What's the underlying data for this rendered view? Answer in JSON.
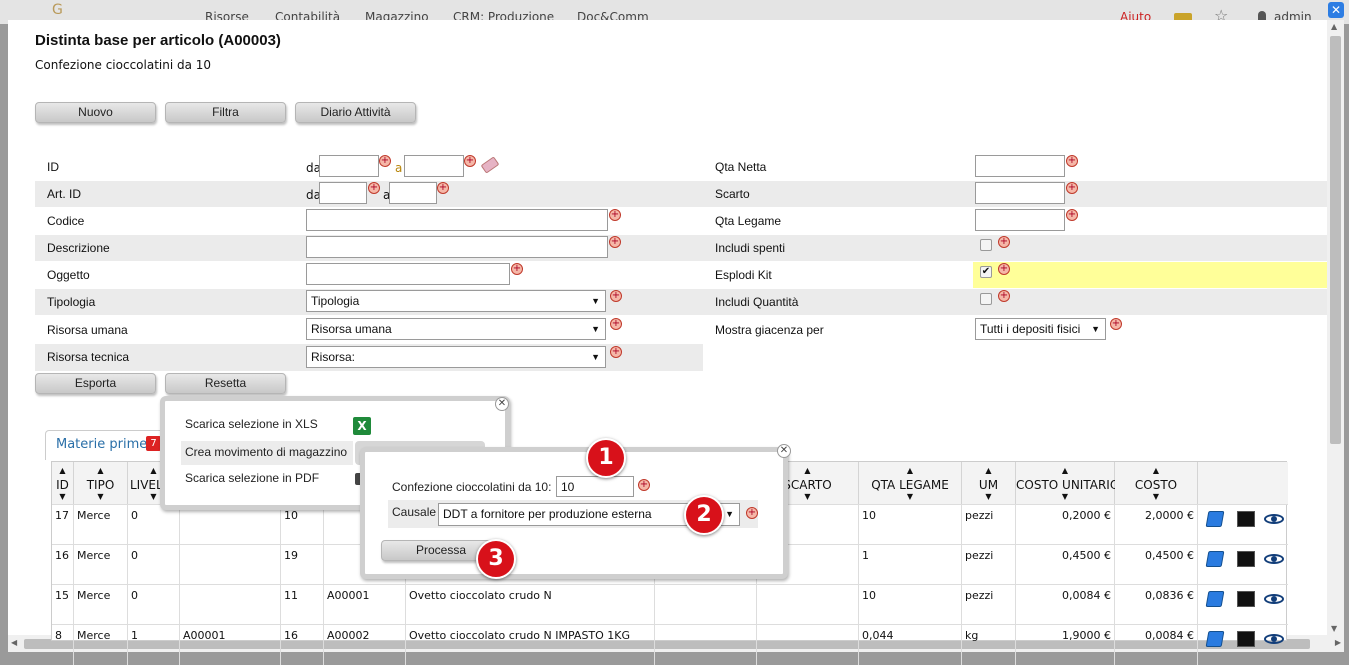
{
  "topbar": {
    "logo": "G",
    "nav": [
      "Risorse",
      "Contabilità",
      "Magazzino",
      "CRM: Produzione",
      "Doc&Comm"
    ],
    "help": "Aiuto",
    "user": "admin"
  },
  "page": {
    "title": "Distinta base per articolo (A00003)",
    "subtitle": "Confezione cioccolatini da 10"
  },
  "toolbar": {
    "new": "Nuovo",
    "filter": "Filtra",
    "activity_log": "Diario Attività",
    "export": "Esporta",
    "reset": "Resetta"
  },
  "filters": {
    "id": {
      "label": "ID",
      "from": "da",
      "to": "a"
    },
    "art_id": {
      "label": "Art. ID",
      "from": "da",
      "to": "a"
    },
    "code": {
      "label": "Codice"
    },
    "description": {
      "label": "Descrizione"
    },
    "object": {
      "label": "Oggetto"
    },
    "type": {
      "label": "Tipologia",
      "value": "Tipologia"
    },
    "human_resource": {
      "label": "Risorsa umana",
      "value": "Risorsa umana"
    },
    "technical_resource": {
      "label": "Risorsa tecnica",
      "value": "Risorsa:"
    },
    "net_qty": {
      "label": "Qta Netta"
    },
    "waste": {
      "label": "Scarto"
    },
    "link_qty": {
      "label": "Qta Legame"
    },
    "include_off": {
      "label": "Includi spenti",
      "checked": false
    },
    "explode_kit": {
      "label": "Esplodi Kit",
      "checked": true
    },
    "include_qty": {
      "label": "Includi Quantità",
      "checked": false
    },
    "show_stock": {
      "label": "Mostra giacenza per",
      "value": "Tutti i depositi fisici"
    }
  },
  "export_menu": {
    "xls": "Scarica selezione in XLS",
    "create_movement": "Crea movimento di magazzino",
    "pdf": "Scarica selezione in PDF"
  },
  "process_dialog": {
    "qty_label": "Confezione cioccolatini da 10:",
    "qty_value": "10",
    "cause_label": "Causale",
    "cause_value": "DDT a fornitore per produzione esterna",
    "process_button": "Processa"
  },
  "markers": [
    "1",
    "2",
    "3"
  ],
  "tabs": {
    "raw_materials": {
      "label": "Materie prime",
      "count": "7"
    }
  },
  "grid": {
    "headers": [
      "ID",
      "TIPO",
      "LIVELLO",
      "",
      "",
      "",
      "",
      "",
      "",
      "SCARTO",
      "QTA LEGAME",
      "UM",
      "COSTO UNITARIO",
      "COSTO"
    ],
    "rows": [
      {
        "id": "17",
        "tipo": "Merce",
        "livello": "0",
        "c4": "",
        "c5": "10",
        "c6": "",
        "c7": "",
        "c8": "",
        "c9": "",
        "scarto": "",
        "qta_legame": "10",
        "um": "pezzi",
        "costo_unitario": "0,2000 €",
        "costo": "2,0000 €"
      },
      {
        "id": "16",
        "tipo": "Merce",
        "livello": "0",
        "c4": "",
        "c5": "19",
        "c6": "",
        "c7": "",
        "c8": "",
        "c9": "",
        "scarto": "",
        "qta_legame": "1",
        "um": "pezzi",
        "costo_unitario": "0,4500 €",
        "costo": "0,4500 €"
      },
      {
        "id": "15",
        "tipo": "Merce",
        "livello": "0",
        "c4": "",
        "c5": "11",
        "c6": "A00001",
        "c7": "Ovetto cioccolato crudo N",
        "c8": "",
        "c9": "",
        "scarto": "",
        "qta_legame": "10",
        "um": "pezzi",
        "costo_unitario": "0,0084 €",
        "costo": "0,0836 €"
      },
      {
        "id": "8",
        "tipo": "Merce",
        "livello": "1",
        "c4": "A00001",
        "c5": "16",
        "c6": "A00002",
        "c7": "Ovetto cioccolato crudo N IMPASTO 1KG",
        "c8": "",
        "c9": "",
        "scarto": "",
        "qta_legame": "0,044",
        "um": "kg",
        "costo_unitario": "1,9000 €",
        "costo": "0,0084 €"
      }
    ]
  },
  "colors": {
    "accent": "#2a6fa8",
    "highlight": "#ffff99",
    "badge": "#dd2222",
    "marker": "#d8111a"
  }
}
